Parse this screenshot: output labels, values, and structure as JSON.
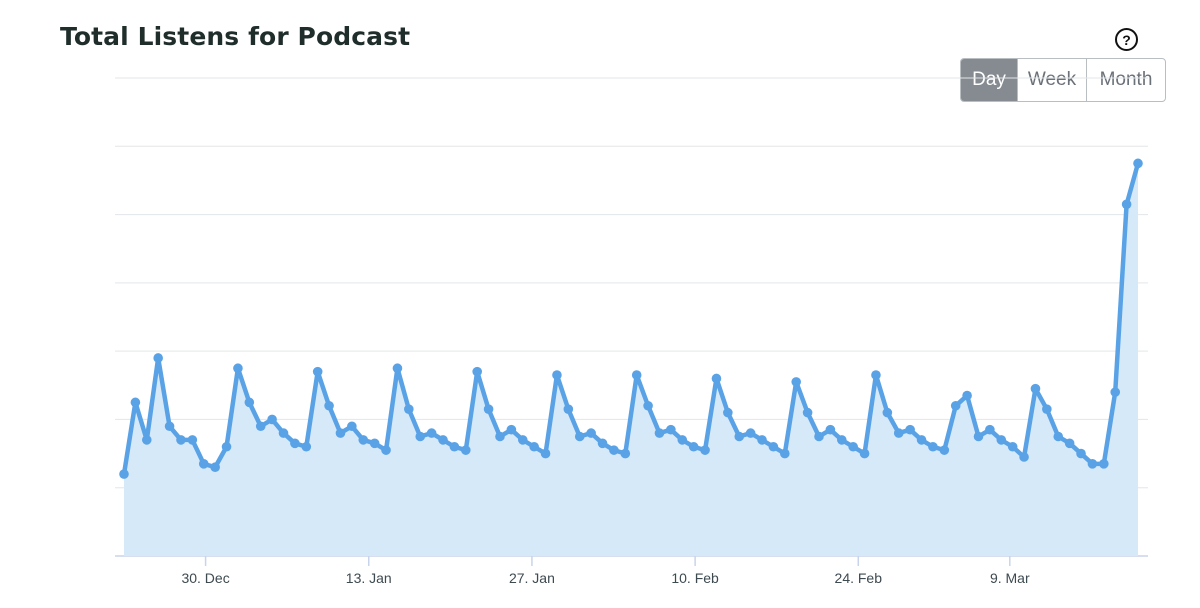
{
  "header": {
    "title": "Total Listens for Podcast",
    "help_icon": "question-circle-icon"
  },
  "range_selector": {
    "options": [
      "Day",
      "Week",
      "Month"
    ],
    "selected": "Day"
  },
  "colors": {
    "line": "#5aa2e6",
    "area": "#d6e9f8",
    "grid": "#e3e6e9",
    "axis": "#c8d4ea",
    "tick_text": "#3d4a50"
  },
  "chart_data": {
    "type": "area",
    "title": "Total Listens for Podcast",
    "xlabel": "",
    "ylabel": "",
    "grid": true,
    "legend": "none",
    "y_gridlines": 7,
    "x_ticks": [
      "30. Dec",
      "13. Jan",
      "27. Jan",
      "10. Feb",
      "24. Feb",
      "9. Mar"
    ],
    "x_start": "2024-12-23",
    "x_end": "2025-03-20",
    "values": [
      1.2,
      2.25,
      1.7,
      2.9,
      1.9,
      1.7,
      1.7,
      1.35,
      1.3,
      1.6,
      2.75,
      2.25,
      1.9,
      2.0,
      1.8,
      1.65,
      1.6,
      2.7,
      2.2,
      1.8,
      1.9,
      1.7,
      1.65,
      1.55,
      2.75,
      2.15,
      1.75,
      1.8,
      1.7,
      1.6,
      1.55,
      2.7,
      2.15,
      1.75,
      1.85,
      1.7,
      1.6,
      1.5,
      2.65,
      2.15,
      1.75,
      1.8,
      1.65,
      1.55,
      1.5,
      2.65,
      2.2,
      1.8,
      1.85,
      1.7,
      1.6,
      1.55,
      2.6,
      2.1,
      1.75,
      1.8,
      1.7,
      1.6,
      1.5,
      2.55,
      2.1,
      1.75,
      1.85,
      1.7,
      1.6,
      1.5,
      2.65,
      2.1,
      1.8,
      1.85,
      1.7,
      1.6,
      1.55,
      2.2,
      2.35,
      1.75,
      1.85,
      1.7,
      1.6,
      1.45,
      2.45,
      2.15,
      1.75,
      1.65,
      1.5,
      1.35,
      1.35,
      2.4,
      5.15,
      5.75
    ]
  }
}
